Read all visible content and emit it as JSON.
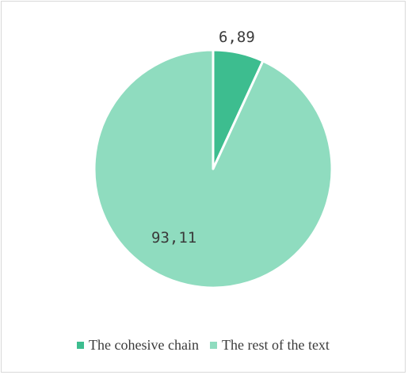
{
  "chart_data": {
    "type": "pie",
    "categories": [
      "The cohesive chain",
      "The rest of the text"
    ],
    "values": [
      6.89,
      93.11
    ],
    "data_labels": [
      "6,89",
      "93,11"
    ],
    "colors": [
      "#3dbd8f",
      "#8fdcbf"
    ],
    "legend_position": "bottom",
    "title": ""
  }
}
